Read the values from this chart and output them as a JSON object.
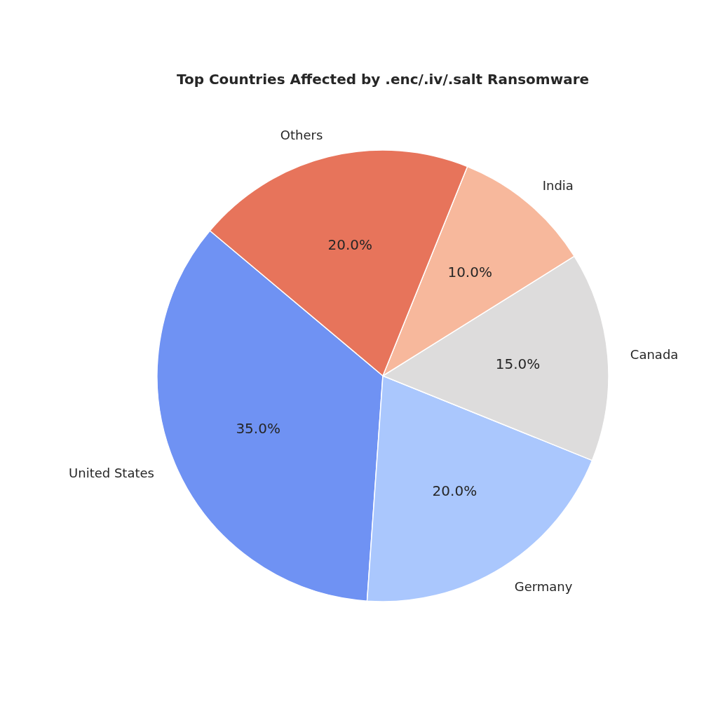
{
  "chart_data": {
    "type": "pie",
    "title": "Top Countries Affected by .enc/.iv/.salt Ransomware",
    "categories": [
      "United States",
      "Germany",
      "Canada",
      "India",
      "Others"
    ],
    "values": [
      35,
      20,
      15,
      10,
      20
    ],
    "colors": [
      "#6f92f3",
      "#aac7fd",
      "#dddcdc",
      "#f7b89c",
      "#e7745b"
    ],
    "value_labels": [
      "35.0%",
      "20.0%",
      "15.0%",
      "10.0%",
      "20.0%"
    ]
  }
}
